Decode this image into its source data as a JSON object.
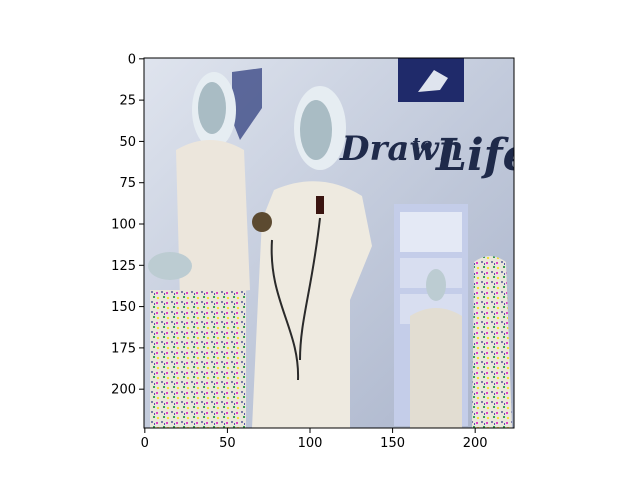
{
  "figure": {
    "type": "image",
    "sign": {
      "line1": "Drawn",
      "line2": "to",
      "line3": "Life"
    }
  },
  "chart_data": {
    "type": "image",
    "x_ticks": [
      0,
      50,
      100,
      150,
      200
    ],
    "y_ticks": [
      0,
      25,
      50,
      75,
      100,
      125,
      150,
      175,
      200
    ],
    "xlim": [
      -0.5,
      223.5
    ],
    "ylim": [
      223.5,
      -0.5
    ],
    "grid": false
  },
  "colors": {
    "wall": "#b9c3d6",
    "wall_light": "#dfe4ee",
    "sign_text": "#1f2a4a",
    "dress": "#eeeae0",
    "skin": "#c9d7dc",
    "hair": "#e6edf2",
    "logo_bg": "#1f2a6a",
    "cabinet": "#c4cde9"
  }
}
